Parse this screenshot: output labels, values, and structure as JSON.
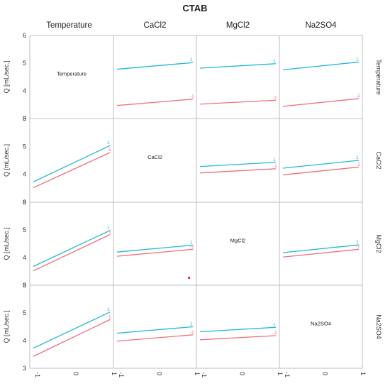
{
  "chart_data": {
    "type": "line",
    "title": "CTAB",
    "factors": [
      "Temperature",
      "CaCl2",
      "MgCl2",
      "Na2SO4"
    ],
    "ylabel": "Q [mL/sec.]",
    "ylim": [
      3,
      6
    ],
    "yticks": [
      3,
      4,
      5,
      6
    ],
    "xlim": [
      -1,
      1
    ],
    "xticks": [
      -1,
      0,
      1
    ],
    "series_levels": [
      "1",
      "-1"
    ],
    "colors": {
      "level_1": "#22b8d8",
      "level_minus1": "#ef6f7c",
      "grid": "#bdbdbd",
      "point": "#d81e1e"
    },
    "cells": [
      {
        "row": "Temperature",
        "col": "CaCl2",
        "level_1": [
          4.78,
          5.02
        ],
        "level_minus1": [
          3.47,
          3.7
        ]
      },
      {
        "row": "Temperature",
        "col": "MgCl2",
        "level_1": [
          4.82,
          4.98
        ],
        "level_minus1": [
          3.52,
          3.66
        ]
      },
      {
        "row": "Temperature",
        "col": "Na2SO4",
        "level_1": [
          4.76,
          5.04
        ],
        "level_minus1": [
          3.44,
          3.72
        ]
      },
      {
        "row": "CaCl2",
        "col": "Temperature",
        "level_1": [
          3.73,
          5.03
        ],
        "level_minus1": [
          3.52,
          4.78
        ]
      },
      {
        "row": "CaCl2",
        "col": "MgCl2",
        "level_1": [
          4.28,
          4.43
        ],
        "level_minus1": [
          4.05,
          4.2
        ]
      },
      {
        "row": "CaCl2",
        "col": "Na2SO4",
        "level_1": [
          4.22,
          4.5
        ],
        "level_minus1": [
          3.98,
          4.26
        ]
      },
      {
        "row": "MgCl2",
        "col": "Temperature",
        "level_1": [
          3.68,
          4.98
        ],
        "level_minus1": [
          3.52,
          4.83
        ]
      },
      {
        "row": "MgCl2",
        "col": "CaCl2",
        "level_1": [
          4.2,
          4.45
        ],
        "level_minus1": [
          4.05,
          4.3
        ]
      },
      {
        "row": "MgCl2",
        "col": "Na2SO4",
        "level_1": [
          4.18,
          4.46
        ],
        "level_minus1": [
          4.02,
          4.3
        ]
      },
      {
        "row": "Na2SO4",
        "col": "Temperature",
        "level_1": [
          3.73,
          5.03
        ],
        "level_minus1": [
          3.43,
          4.76
        ]
      },
      {
        "row": "Na2SO4",
        "col": "CaCl2",
        "level_1": [
          4.27,
          4.5
        ],
        "level_minus1": [
          3.98,
          4.21
        ]
      },
      {
        "row": "Na2SO4",
        "col": "MgCl2",
        "level_1": [
          4.32,
          4.48
        ],
        "level_minus1": [
          4.03,
          4.18
        ]
      }
    ],
    "points": [
      {
        "row": "MgCl2",
        "col": "CaCl2",
        "x": 0.9,
        "y": 3.27
      }
    ],
    "grid": true,
    "legend": "none"
  }
}
